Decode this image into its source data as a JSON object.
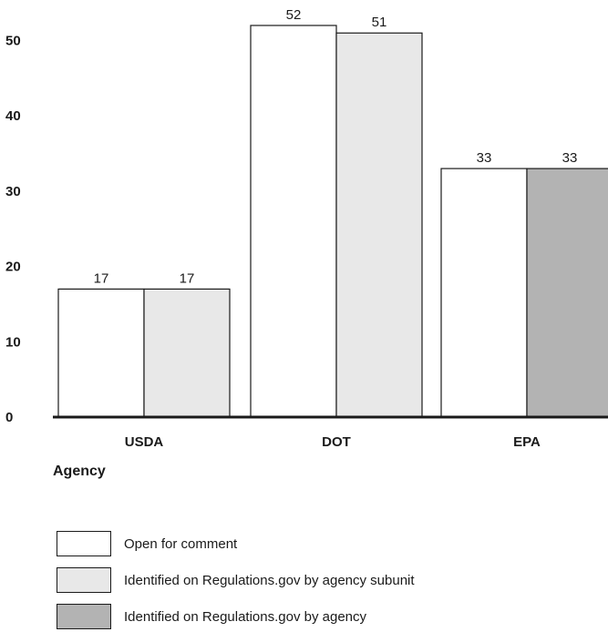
{
  "chart_data": {
    "type": "bar",
    "categories": [
      "USDA",
      "DOT",
      "EPA"
    ],
    "xlabel": "Agency",
    "ylabel": "",
    "ylim": [
      0,
      55
    ],
    "yticks": [
      0,
      10,
      20,
      30,
      40,
      50
    ],
    "series": [
      {
        "name": "Open for comment",
        "values": [
          17,
          52,
          33
        ],
        "color": "#ffffff"
      },
      {
        "name": "Identified on Regulations.gov by agency subunit",
        "values": [
          17,
          51,
          null
        ],
        "color": "#e8e8e8"
      },
      {
        "name": "Identified on Regulations.gov by agency",
        "values": [
          null,
          null,
          33
        ],
        "color": "#b3b3b3"
      }
    ],
    "bar_groups": [
      {
        "category": "USDA",
        "bars": [
          {
            "series": 0,
            "value": 17
          },
          {
            "series": 1,
            "value": 17
          }
        ]
      },
      {
        "category": "DOT",
        "bars": [
          {
            "series": 0,
            "value": 52
          },
          {
            "series": 1,
            "value": 51
          }
        ]
      },
      {
        "category": "EPA",
        "bars": [
          {
            "series": 0,
            "value": 33
          },
          {
            "series": 2,
            "value": 33
          }
        ]
      }
    ],
    "data_labels": true,
    "grid": false,
    "legend_position": "bottom-left"
  }
}
